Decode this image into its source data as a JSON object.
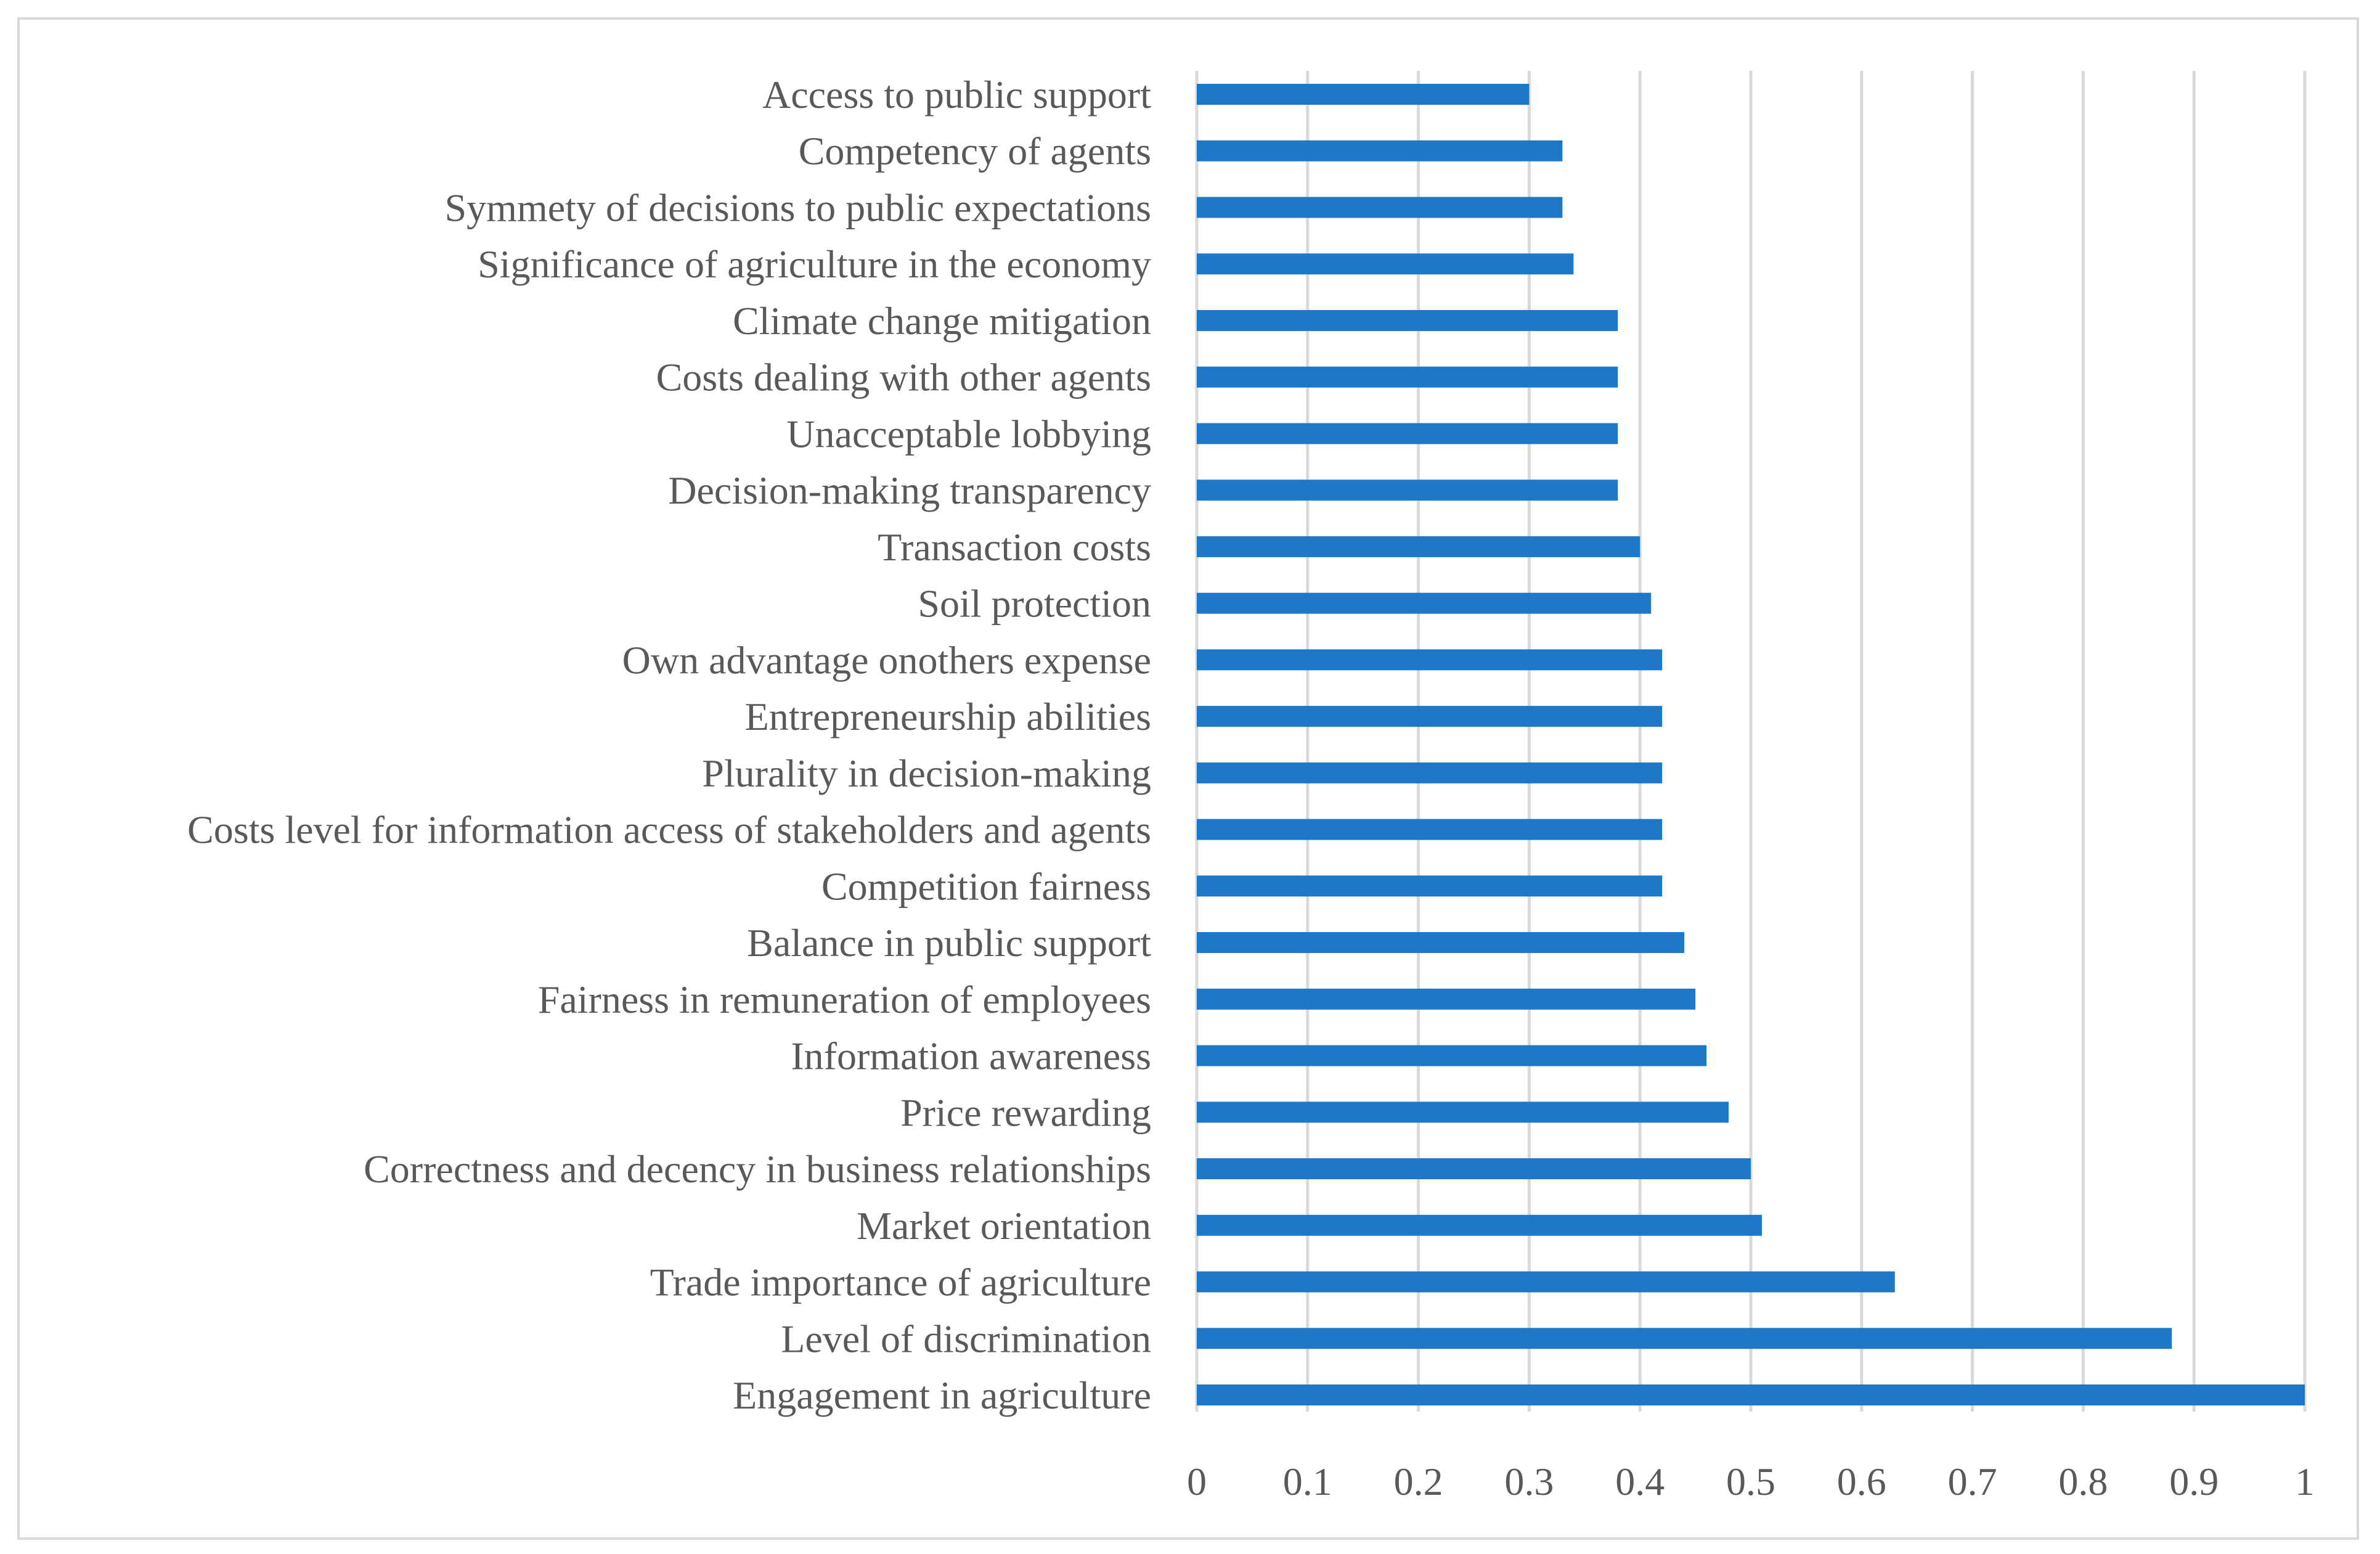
{
  "chart_data": {
    "type": "bar",
    "orientation": "horizontal",
    "title": "",
    "xlabel": "",
    "ylabel": "",
    "xlim": [
      0,
      1
    ],
    "x_ticks": [
      "0",
      "0.1",
      "0.2",
      "0.3",
      "0.4",
      "0.5",
      "0.6",
      "0.7",
      "0.8",
      "0.9",
      "1"
    ],
    "grid": true,
    "bar_color": "#1f77c9",
    "categories": [
      "Access to public support",
      "Competency of agents",
      "Symmety of decisions to public expectations",
      "Significance of agriculture in the economy",
      "Climate change mitigation",
      "Costs dealing with other agents",
      "Unacceptable lobbying",
      "Decision-making transparency",
      "Transaction costs",
      "Soil protection",
      "Own advantage onothers expense",
      "Entrepreneurship abilities",
      "Plurality in decision-making",
      "Costs level for information access of stakeholders and agents",
      "Competition fairness",
      "Balance in public support",
      "Fairness in remuneration of employees",
      "Information awareness",
      "Price rewarding",
      "Correctness and decency in business relationships",
      "Market orientation",
      "Trade importance of agriculture",
      "Level of discrimination",
      "Engagement in agriculture"
    ],
    "values": [
      0.3,
      0.33,
      0.33,
      0.34,
      0.38,
      0.38,
      0.38,
      0.38,
      0.4,
      0.41,
      0.42,
      0.42,
      0.42,
      0.42,
      0.42,
      0.44,
      0.45,
      0.46,
      0.48,
      0.5,
      0.51,
      0.63,
      0.88,
      1.0
    ]
  }
}
